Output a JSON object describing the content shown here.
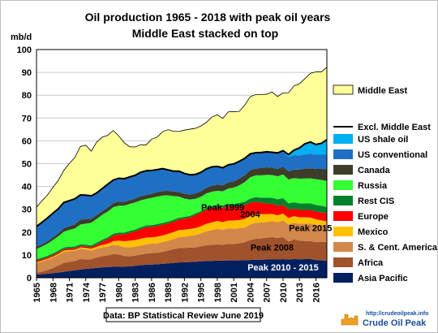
{
  "chart_data": {
    "type": "area",
    "title": "Oil production 1965 - 2018 with peak oil years",
    "subtitle": "Middle East stacked  on top",
    "ylabel": "mb/d",
    "xlabel": "",
    "ylim": [
      0,
      100
    ],
    "yticks": [
      0,
      10,
      20,
      30,
      40,
      50,
      60,
      70,
      80,
      90,
      100
    ],
    "x": [
      1965,
      1966,
      1967,
      1968,
      1969,
      1970,
      1971,
      1972,
      1973,
      1974,
      1975,
      1976,
      1977,
      1978,
      1979,
      1980,
      1981,
      1982,
      1983,
      1984,
      1985,
      1986,
      1987,
      1988,
      1989,
      1990,
      1991,
      1992,
      1993,
      1994,
      1995,
      1996,
      1997,
      1998,
      1999,
      2000,
      2001,
      2002,
      2003,
      2004,
      2005,
      2006,
      2007,
      2008,
      2009,
      2010,
      2011,
      2012,
      2013,
      2014,
      2015,
      2016,
      2017,
      2018
    ],
    "xticks": [
      "1965",
      "1968",
      "1971",
      "1974",
      "1977",
      "1980",
      "1983",
      "1986",
      "1989",
      "1992",
      "1995",
      "1998",
      "2001",
      "2004",
      "2007",
      "2010",
      "2013",
      "2016"
    ],
    "stacked": true,
    "grid": true,
    "legend_position": "right",
    "series": [
      {
        "name": "Asia Pacific",
        "color": "#002060",
        "values": [
          1.4,
          1.6,
          1.8,
          2.0,
          2.3,
          2.6,
          3.0,
          3.3,
          3.6,
          3.9,
          4.1,
          4.3,
          4.5,
          4.7,
          4.8,
          4.8,
          4.9,
          5.0,
          5.2,
          5.5,
          5.7,
          5.8,
          5.9,
          6.1,
          6.3,
          6.5,
          6.7,
          6.8,
          6.9,
          7.0,
          7.2,
          7.3,
          7.4,
          7.5,
          7.5,
          7.6,
          7.6,
          7.6,
          7.7,
          7.8,
          7.9,
          7.9,
          8.0,
          8.0,
          8.0,
          8.2,
          8.0,
          8.2,
          8.1,
          8.2,
          8.2,
          7.8,
          7.6,
          7.5
        ]
      },
      {
        "name": "Africa",
        "color": "#a0522d",
        "values": [
          0.8,
          1.1,
          1.6,
          2.3,
          3.1,
          4.0,
          4.0,
          4.1,
          4.6,
          4.2,
          4.0,
          4.6,
          5.0,
          5.1,
          5.6,
          5.4,
          4.6,
          4.4,
          4.5,
          4.7,
          4.9,
          5.0,
          5.0,
          5.2,
          5.6,
          6.0,
          6.3,
          6.3,
          6.3,
          6.3,
          6.6,
          6.9,
          7.1,
          7.1,
          7.0,
          7.2,
          7.2,
          7.5,
          7.9,
          8.7,
          9.2,
          9.3,
          9.6,
          9.8,
          9.4,
          9.6,
          7.9,
          8.6,
          8.2,
          7.9,
          7.9,
          7.8,
          8.1,
          8.2
        ]
      },
      {
        "name": "S. & Cent. America",
        "color": "#d2884a",
        "values": [
          4.3,
          4.4,
          4.5,
          4.6,
          4.6,
          4.8,
          4.7,
          4.4,
          4.6,
          4.3,
          3.8,
          3.8,
          3.8,
          3.8,
          4.0,
          4.0,
          3.9,
          3.9,
          3.9,
          3.9,
          4.0,
          4.1,
          4.2,
          4.3,
          4.4,
          4.5,
          4.8,
          4.9,
          5.1,
          5.4,
          5.7,
          6.1,
          6.4,
          6.8,
          6.6,
          6.8,
          6.7,
          6.6,
          6.4,
          6.8,
          7.0,
          7.0,
          6.8,
          7.0,
          7.0,
          7.3,
          7.4,
          7.3,
          7.3,
          7.6,
          7.7,
          7.5,
          7.3,
          6.9
        ]
      },
      {
        "name": "Mexico",
        "color": "#ffc000",
        "values": [
          0.4,
          0.4,
          0.4,
          0.4,
          0.5,
          0.5,
          0.5,
          0.5,
          0.5,
          0.7,
          0.8,
          0.9,
          1.1,
          1.3,
          1.6,
          2.1,
          2.6,
          3.0,
          2.9,
          3.0,
          3.0,
          2.8,
          2.9,
          2.9,
          2.9,
          3.0,
          3.1,
          3.1,
          3.1,
          3.1,
          3.1,
          3.3,
          3.4,
          3.5,
          3.3,
          3.5,
          3.6,
          3.6,
          3.8,
          3.8,
          3.8,
          3.7,
          3.5,
          3.2,
          3.0,
          3.0,
          2.9,
          2.9,
          2.9,
          2.8,
          2.6,
          2.5,
          2.2,
          2.1
        ]
      },
      {
        "name": "Europe",
        "color": "#ff0000",
        "values": [
          0.6,
          0.6,
          0.6,
          0.6,
          0.6,
          0.6,
          0.6,
          0.6,
          0.6,
          0.6,
          0.7,
          1.0,
          1.5,
          2.0,
          2.5,
          2.7,
          3.0,
          3.4,
          3.8,
          4.2,
          4.5,
          4.6,
          4.7,
          4.7,
          4.6,
          4.6,
          4.6,
          4.8,
          5.0,
          5.7,
          5.9,
          6.3,
          6.3,
          6.1,
          6.3,
          6.3,
          6.2,
          6.2,
          6.0,
          5.8,
          5.4,
          5.0,
          4.7,
          4.4,
          4.2,
          3.9,
          3.6,
          3.3,
          3.2,
          3.2,
          3.3,
          3.4,
          3.5,
          3.5
        ]
      },
      {
        "name": "Rest CIS",
        "color": "#00802b",
        "values": [
          0.7,
          0.7,
          0.7,
          0.8,
          0.8,
          0.8,
          0.8,
          0.8,
          0.8,
          0.8,
          0.8,
          0.8,
          0.8,
          0.8,
          0.8,
          0.8,
          0.8,
          0.8,
          0.8,
          0.8,
          0.8,
          0.8,
          0.8,
          0.8,
          0.8,
          0.8,
          0.8,
          0.8,
          0.7,
          0.7,
          0.7,
          0.8,
          0.8,
          0.9,
          1.0,
          1.0,
          1.1,
          1.3,
          1.5,
          1.8,
          2.0,
          2.2,
          2.5,
          2.6,
          2.8,
          2.9,
          2.8,
          2.8,
          2.9,
          2.9,
          2.9,
          2.9,
          2.9,
          2.8
        ]
      },
      {
        "name": "Russia",
        "color": "#33ff33",
        "values": [
          4.4,
          4.9,
          5.3,
          5.8,
          6.3,
          6.9,
          7.4,
          7.9,
          8.6,
          9.2,
          9.9,
          10.4,
          10.9,
          11.3,
          11.6,
          11.8,
          11.8,
          11.9,
          11.9,
          11.8,
          11.6,
          11.9,
          12.1,
          12.0,
          11.5,
          10.4,
          9.3,
          8.0,
          7.2,
          6.4,
          6.3,
          6.2,
          6.3,
          6.2,
          6.2,
          6.7,
          7.1,
          7.7,
          8.6,
          9.3,
          9.6,
          9.8,
          10.0,
          10.0,
          10.1,
          10.4,
          10.5,
          10.6,
          10.8,
          10.9,
          11.0,
          11.3,
          11.3,
          11.4
        ]
      },
      {
        "name": "Canada",
        "color": "#3d3d29",
        "values": [
          0.9,
          1.0,
          1.1,
          1.2,
          1.3,
          1.5,
          1.6,
          1.8,
          2.1,
          2.0,
          1.8,
          1.7,
          1.6,
          1.7,
          1.8,
          1.8,
          1.6,
          1.6,
          1.7,
          1.8,
          1.8,
          1.8,
          1.9,
          2.0,
          2.0,
          2.0,
          2.0,
          2.1,
          2.2,
          2.3,
          2.4,
          2.5,
          2.6,
          2.7,
          2.6,
          2.7,
          2.7,
          2.9,
          3.0,
          3.1,
          3.0,
          3.2,
          3.3,
          3.2,
          3.2,
          3.3,
          3.5,
          3.7,
          4.0,
          4.3,
          4.4,
          4.5,
          4.8,
          5.2
        ]
      },
      {
        "name": "US conventional",
        "color": "#1f6fc5",
        "values": [
          9.0,
          9.6,
          10.2,
          10.6,
          10.8,
          11.3,
          11.2,
          11.2,
          10.9,
          10.5,
          10.0,
          9.7,
          9.9,
          10.3,
          10.1,
          10.2,
          10.2,
          10.2,
          10.2,
          10.5,
          10.6,
          10.2,
          9.9,
          9.8,
          9.2,
          8.9,
          9.1,
          8.9,
          8.6,
          8.4,
          8.3,
          8.3,
          8.3,
          8.0,
          7.7,
          7.7,
          7.7,
          7.6,
          7.4,
          7.2,
          6.9,
          6.8,
          6.8,
          6.7,
          6.8,
          6.7,
          6.4,
          6.4,
          6.2,
          6.3,
          6.3,
          6.2,
          6.2,
          6.3
        ]
      },
      {
        "name": "US shale oil",
        "color": "#00b0f0",
        "values": [
          0,
          0,
          0,
          0,
          0,
          0,
          0,
          0,
          0,
          0,
          0,
          0,
          0,
          0,
          0,
          0,
          0,
          0,
          0,
          0,
          0,
          0,
          0,
          0,
          0,
          0,
          0,
          0,
          0,
          0,
          0,
          0,
          0,
          0,
          0,
          0,
          0,
          0,
          0,
          0,
          0,
          0,
          0,
          0.1,
          0.2,
          0.4,
          1.0,
          2.1,
          3.3,
          4.6,
          5.2,
          4.5,
          5.0,
          6.6
        ]
      },
      {
        "name": "Middle East",
        "color": "#ffff99",
        "values": [
          8.4,
          9.4,
          10.1,
          11.3,
          12.5,
          14.1,
          16.3,
          18.1,
          21.2,
          21.9,
          19.6,
          22.3,
          22.5,
          21.4,
          21.7,
          18.6,
          15.8,
          13.2,
          12.4,
          12.1,
          11.3,
          13.7,
          14.2,
          16.2,
          17.6,
          17.5,
          17.4,
          19.0,
          20.0,
          20.2,
          20.3,
          20.4,
          21.8,
          22.6,
          21.6,
          23.2,
          22.9,
          21.9,
          23.3,
          25.0,
          25.5,
          25.4,
          25.2,
          26.4,
          24.7,
          25.3,
          27.1,
          28.2,
          28.1,
          28.6,
          30.1,
          31.8,
          31.3,
          31.8
        ]
      }
    ],
    "excl_middle_east_label": "Excl. Middle East",
    "annotations": [
      {
        "text": "Peak 1999",
        "x": 1999,
        "y": 29.5,
        "color": "#000000"
      },
      {
        "text": "2004",
        "x": 2004,
        "y": 26.5,
        "color": "#000000"
      },
      {
        "text": "Peak 2015",
        "x": 2015,
        "y": 20.5,
        "color": "#000000"
      },
      {
        "text": "Peak 2008",
        "x": 2008,
        "y": 12,
        "color": "#000000"
      },
      {
        "text": "Peak 2010 - 2015",
        "x": 2010,
        "y": 3.2,
        "color": "#ffffff"
      }
    ],
    "source": "Data: BP Statistical Review June 2019"
  },
  "logo": {
    "url_text": "http://crudeoilpeak.info",
    "name": "Crude Oil Peak"
  }
}
